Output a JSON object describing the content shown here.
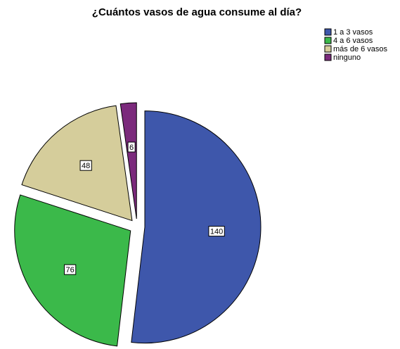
{
  "chart_data": {
    "type": "pie",
    "title": "¿Cuántos vasos de agua consume al día?",
    "categories": [
      "1 a 3 vasos",
      "4 a 6 vasos",
      "más de 6 vasos",
      "ninguno"
    ],
    "values": [
      140,
      76,
      48,
      6
    ],
    "colors": [
      "#3e57ab",
      "#3bb94a",
      "#d5cd9b",
      "#7b2a7c"
    ],
    "legend": "upper right"
  }
}
